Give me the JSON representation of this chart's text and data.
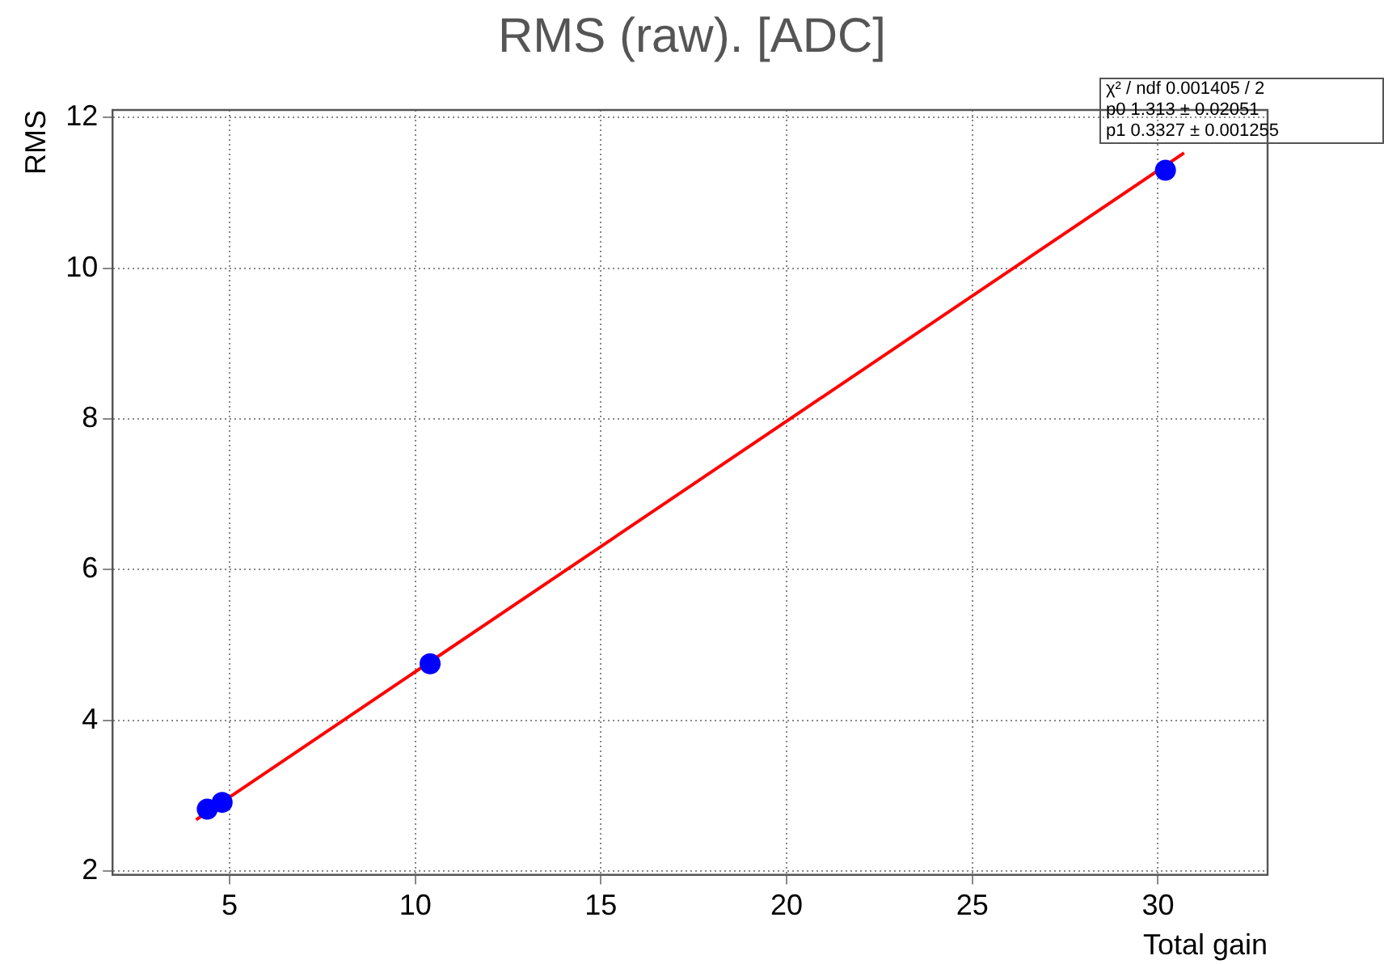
{
  "chart_data": {
    "type": "scatter",
    "title": "RMS (raw). [ADC]",
    "xlabel": "Total gain",
    "ylabel": "RMS",
    "xlim": [
      1.85,
      32.95
    ],
    "xticks": [
      5,
      10,
      15,
      20,
      25,
      30
    ],
    "ylim": [
      1.95,
      12.1
    ],
    "yticks": [
      2,
      4,
      6,
      8,
      10,
      12
    ],
    "grid": true,
    "marker": "circle",
    "legend": false,
    "series": [
      {
        "type": "scatter",
        "color": "#0000ff",
        "x": [
          4.4,
          4.8,
          10.4,
          30.2
        ],
        "values": [
          2.82,
          2.91,
          4.75,
          11.3
        ]
      },
      {
        "type": "line",
        "color": "#ff0000",
        "marker": "none",
        "x": [
          4.1,
          30.7
        ],
        "values": [
          2.68,
          11.53
        ]
      }
    ],
    "annotations": [
      "χ² / ndf 0.001405 / 2",
      "p0 1.313 ± 0.02051",
      "p1 0.3327 ± 0.001255"
    ]
  }
}
